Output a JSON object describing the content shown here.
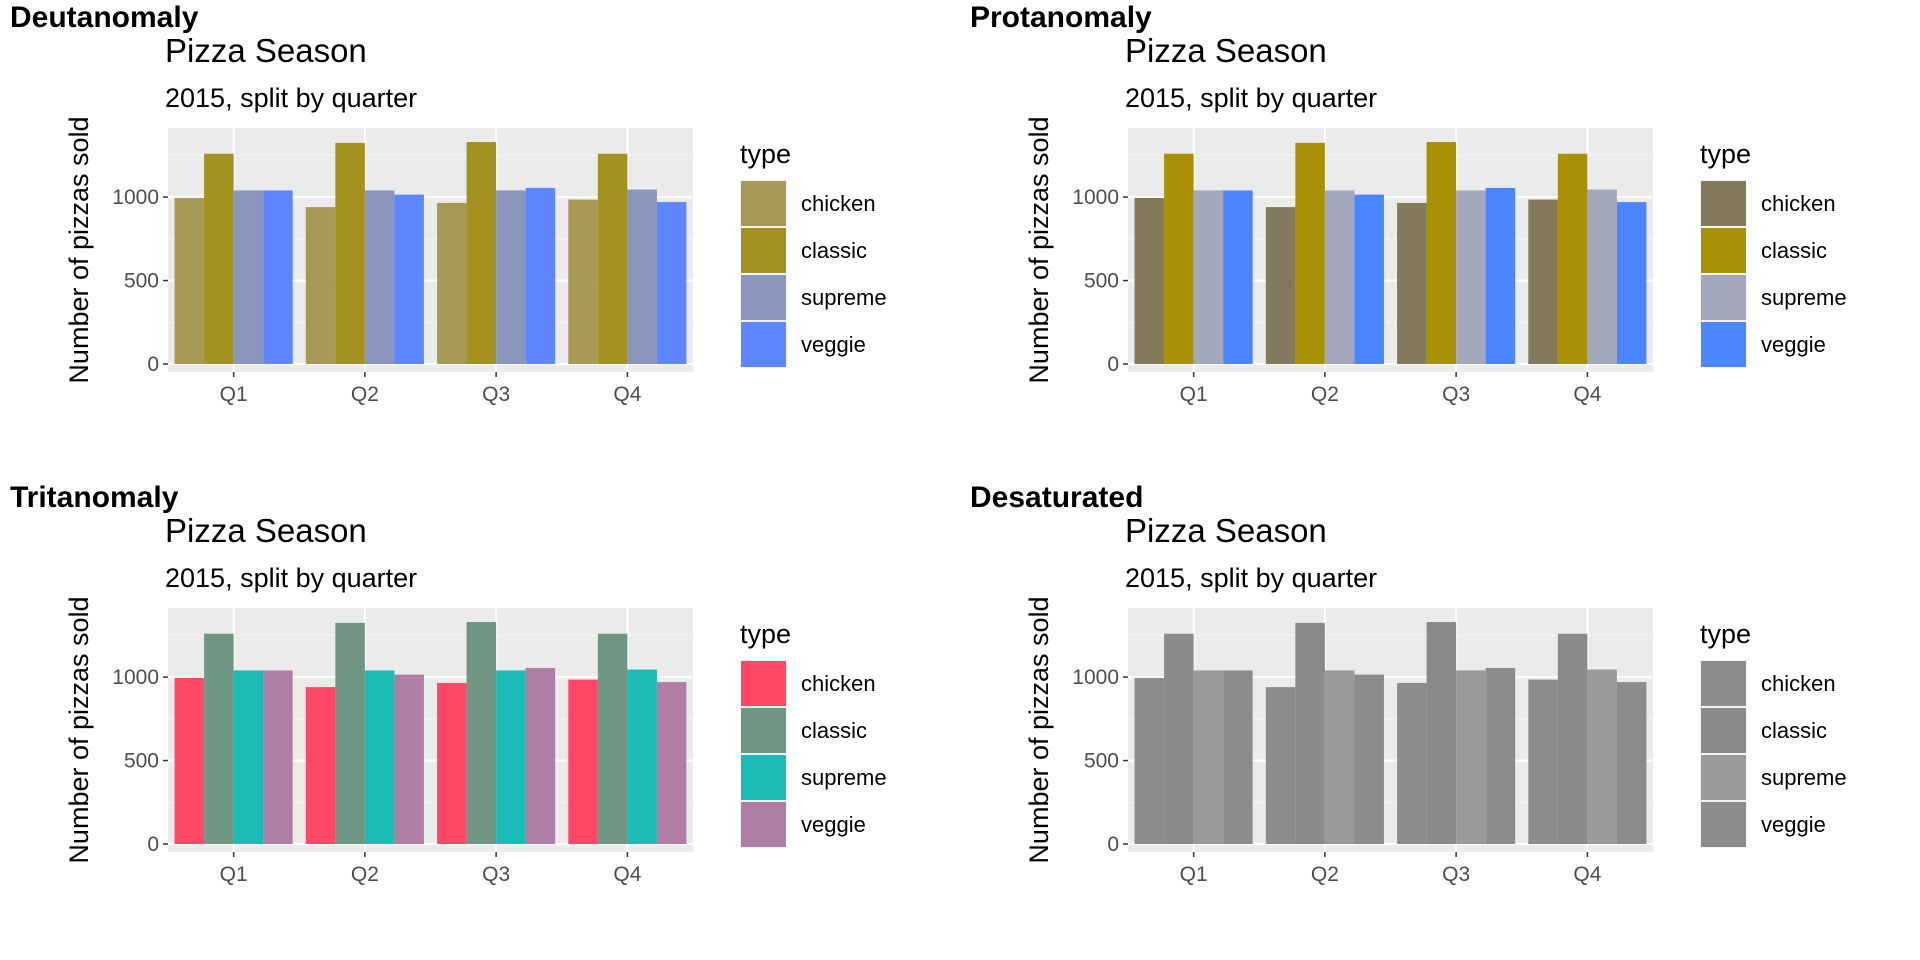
{
  "chart_data": [
    {
      "type": "bar",
      "panel_label": "Deutanomaly",
      "title": "Pizza Season",
      "subtitle": "2015, split by quarter",
      "xlabel": "",
      "ylabel": "Number of pizzas sold",
      "ylim": [
        0,
        1390
      ],
      "yticks": [
        0,
        500,
        1000
      ],
      "grid": true,
      "legend_title": "type",
      "legend_position": "right",
      "categories": [
        "Q1",
        "Q2",
        "Q3",
        "Q4"
      ],
      "series": [
        {
          "name": "chicken",
          "color": "#A89956",
          "values": [
            995,
            940,
            965,
            985
          ]
        },
        {
          "name": "classic",
          "color": "#A39120",
          "values": [
            1260,
            1325,
            1330,
            1260
          ]
        },
        {
          "name": "supreme",
          "color": "#8A96BC",
          "values": [
            1040,
            1040,
            1040,
            1045
          ]
        },
        {
          "name": "veggie",
          "color": "#5E87FF",
          "values": [
            1040,
            1015,
            1055,
            970
          ]
        }
      ]
    },
    {
      "type": "bar",
      "panel_label": "Protanomaly",
      "title": "Pizza Season",
      "subtitle": "2015, split by quarter",
      "xlabel": "",
      "ylabel": "Number of pizzas sold",
      "ylim": [
        0,
        1390
      ],
      "yticks": [
        0,
        500,
        1000
      ],
      "grid": true,
      "legend_title": "type",
      "legend_position": "right",
      "categories": [
        "Q1",
        "Q2",
        "Q3",
        "Q4"
      ],
      "series": [
        {
          "name": "chicken",
          "color": "#827A5A",
          "values": [
            995,
            940,
            965,
            985
          ]
        },
        {
          "name": "classic",
          "color": "#A99106",
          "values": [
            1260,
            1325,
            1330,
            1260
          ]
        },
        {
          "name": "supreme",
          "color": "#A3A7BB",
          "values": [
            1040,
            1040,
            1040,
            1045
          ]
        },
        {
          "name": "veggie",
          "color": "#4A87FF",
          "values": [
            1040,
            1015,
            1055,
            970
          ]
        }
      ]
    },
    {
      "type": "bar",
      "panel_label": "Tritanomaly",
      "title": "Pizza Season",
      "subtitle": "2015, split by quarter",
      "xlabel": "",
      "ylabel": "Number of pizzas sold",
      "ylim": [
        0,
        1390
      ],
      "yticks": [
        0,
        500,
        1000
      ],
      "grid": true,
      "legend_title": "type",
      "legend_position": "right",
      "categories": [
        "Q1",
        "Q2",
        "Q3",
        "Q4"
      ],
      "series": [
        {
          "name": "chicken",
          "color": "#FF4766",
          "values": [
            995,
            940,
            965,
            985
          ]
        },
        {
          "name": "classic",
          "color": "#6E9683",
          "values": [
            1260,
            1325,
            1330,
            1260
          ]
        },
        {
          "name": "supreme",
          "color": "#1BBCB6",
          "values": [
            1040,
            1040,
            1040,
            1045
          ]
        },
        {
          "name": "veggie",
          "color": "#B07EA4",
          "values": [
            1040,
            1015,
            1055,
            970
          ]
        }
      ]
    },
    {
      "type": "bar",
      "panel_label": "Desaturated",
      "title": "Pizza Season",
      "subtitle": "2015, split by quarter",
      "xlabel": "",
      "ylabel": "Number of pizzas sold",
      "ylim": [
        0,
        1390
      ],
      "yticks": [
        0,
        500,
        1000
      ],
      "grid": true,
      "legend_title": "type",
      "legend_position": "right",
      "categories": [
        "Q1",
        "Q2",
        "Q3",
        "Q4"
      ],
      "series": [
        {
          "name": "chicken",
          "color": "#8C8C8C",
          "values": [
            995,
            940,
            965,
            985
          ]
        },
        {
          "name": "classic",
          "color": "#8A8A8A",
          "values": [
            1260,
            1325,
            1330,
            1260
          ]
        },
        {
          "name": "supreme",
          "color": "#9A9A9A",
          "values": [
            1040,
            1040,
            1040,
            1045
          ]
        },
        {
          "name": "veggie",
          "color": "#8C8C8C",
          "values": [
            1040,
            1015,
            1055,
            970
          ]
        }
      ]
    }
  ]
}
